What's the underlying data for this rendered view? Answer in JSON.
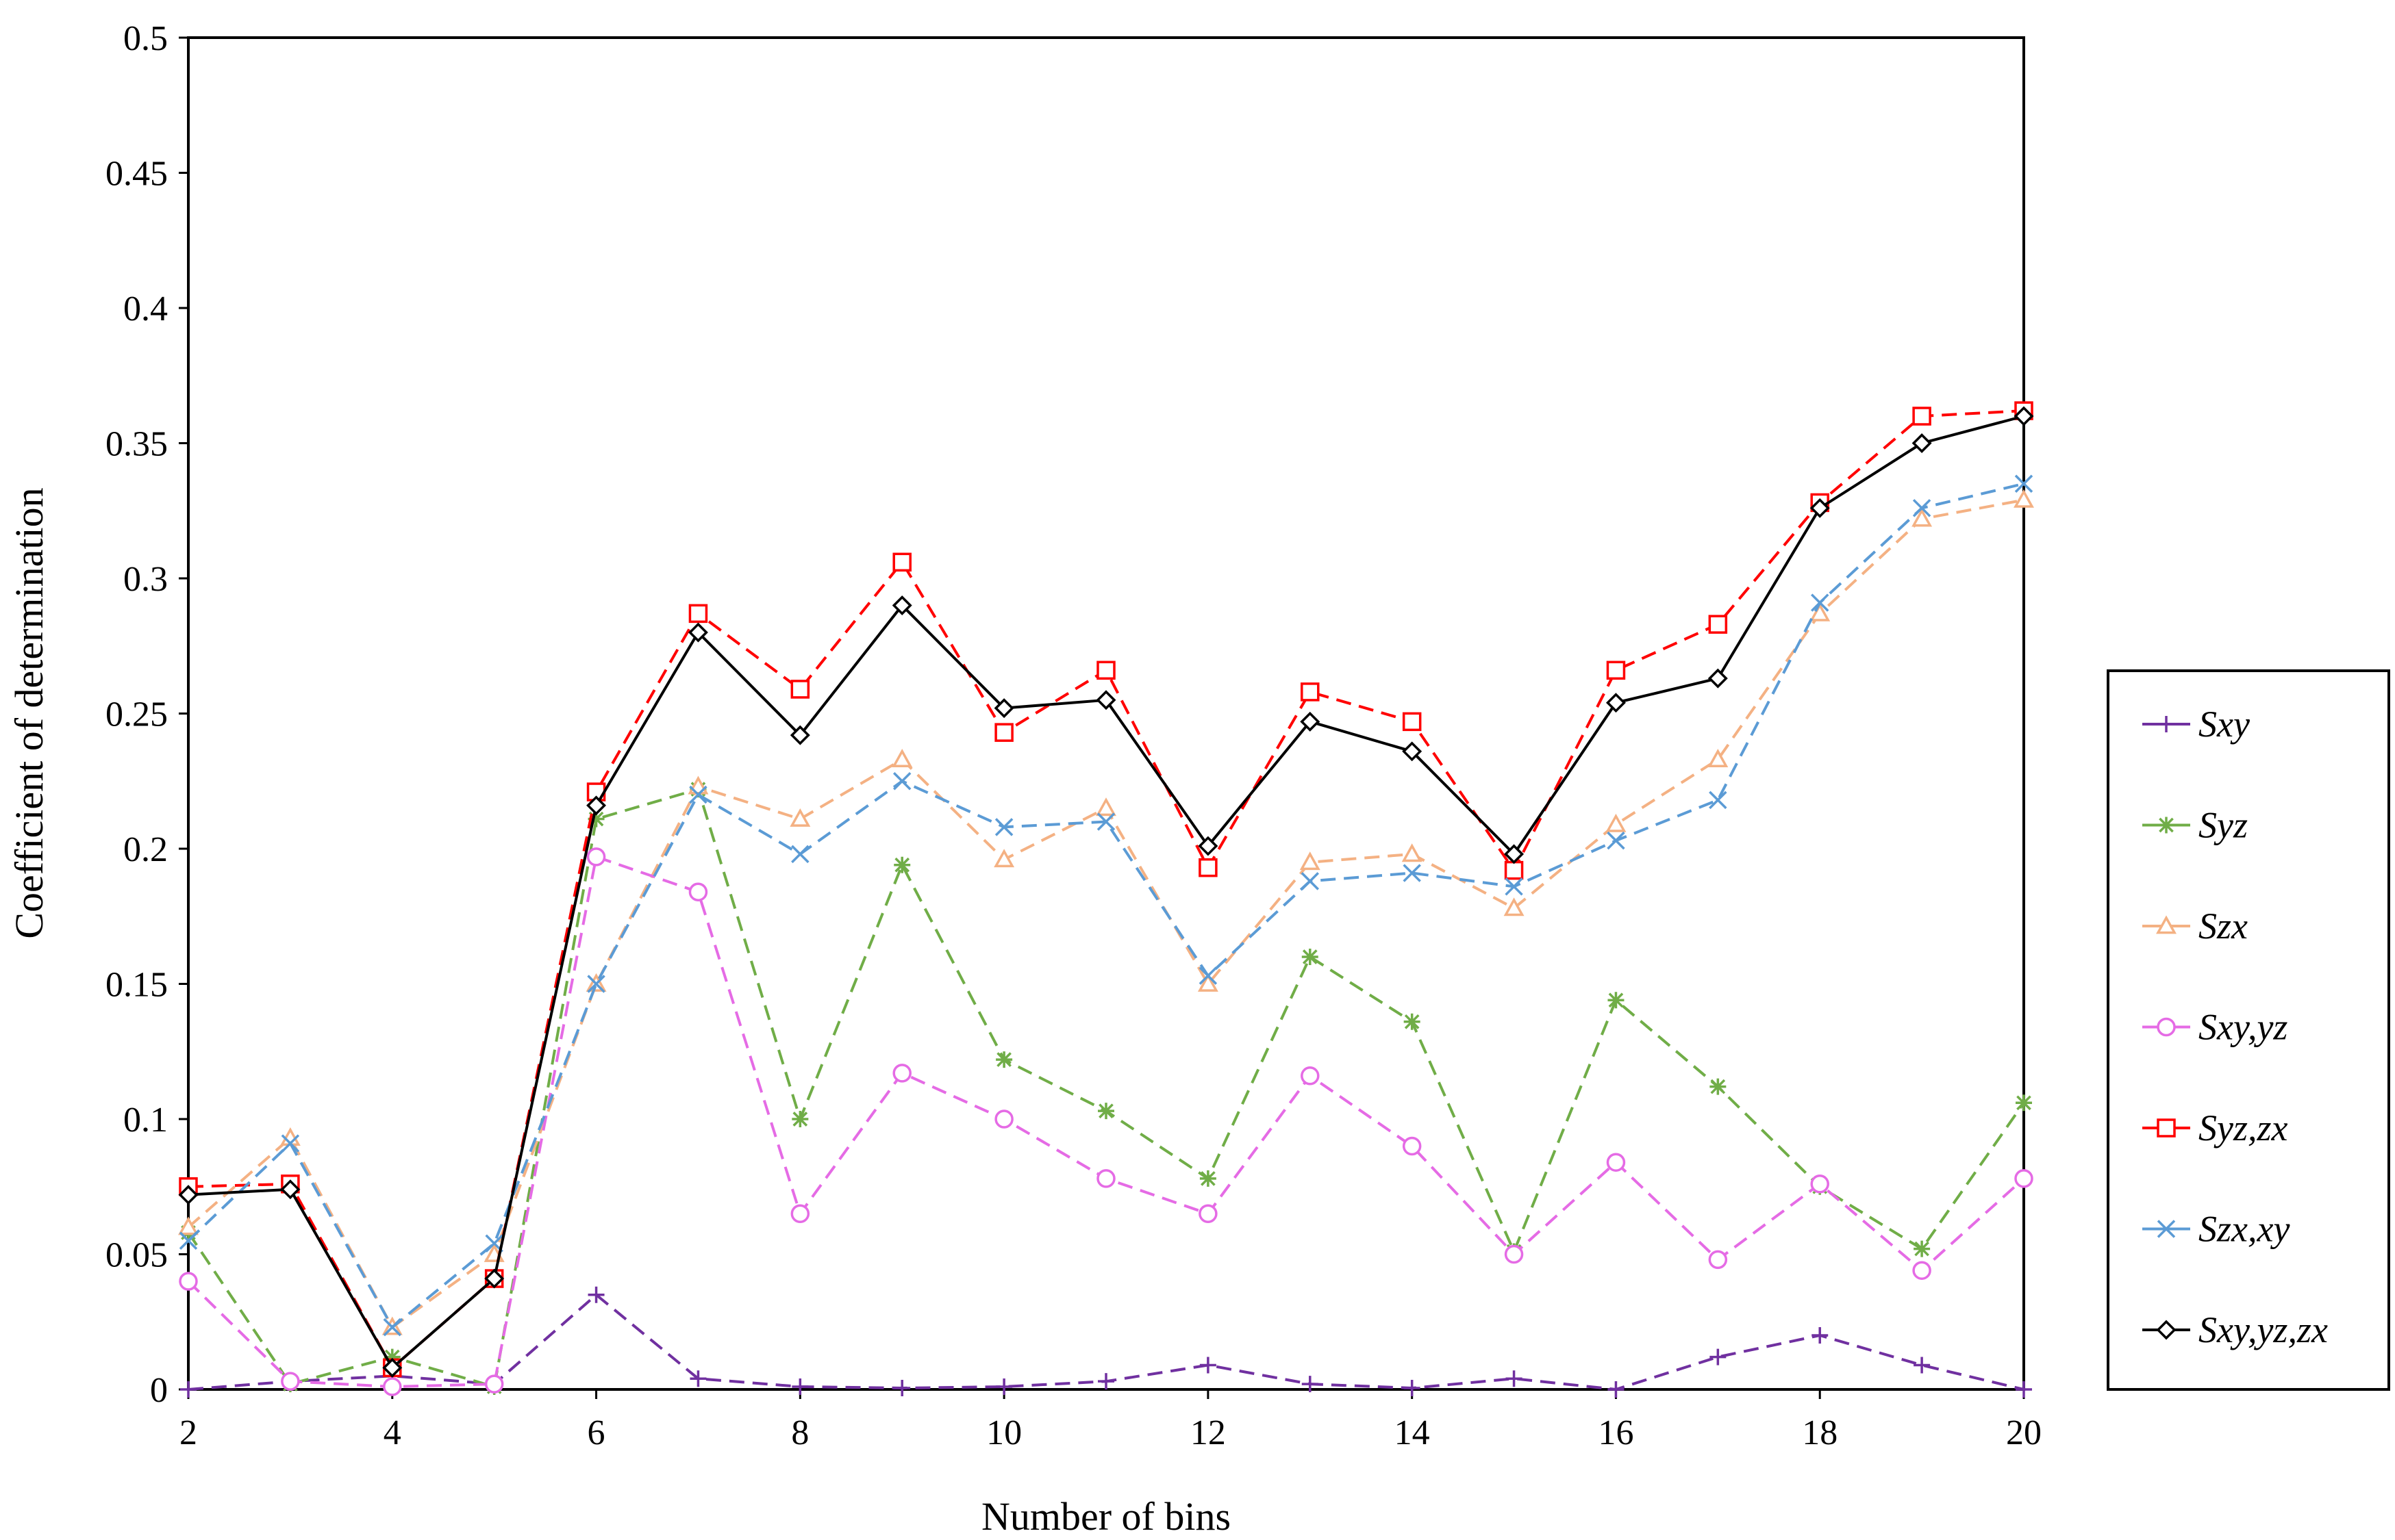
{
  "chart_data": {
    "type": "line",
    "title": "",
    "xlabel": "Number of bins",
    "ylabel": "Coefficient of determination",
    "xlim": [
      2,
      20
    ],
    "ylim": [
      0,
      0.5
    ],
    "xticks": [
      "2",
      "4",
      "6",
      "8",
      "10",
      "12",
      "14",
      "16",
      "18",
      "20"
    ],
    "yticks": [
      "0",
      "0.05",
      "0.1",
      "0.15",
      "0.2",
      "0.25",
      "0.3",
      "0.35",
      "0.4",
      "0.45",
      "0.5"
    ],
    "legend_position": "right",
    "x": [
      2,
      3,
      4,
      5,
      6,
      7,
      8,
      9,
      10,
      11,
      12,
      13,
      14,
      15,
      16,
      17,
      18,
      19,
      20
    ],
    "series": [
      {
        "name": "Sxy",
        "color": "#7030A0",
        "marker": "plus",
        "dash": true,
        "values": [
          0.0,
          0.003,
          0.005,
          0.002,
          0.035,
          0.004,
          0.001,
          0.0005,
          0.001,
          0.003,
          0.009,
          0.002,
          0.0005,
          0.004,
          0.0,
          0.012,
          0.02,
          0.009,
          0.0
        ]
      },
      {
        "name": "Syz",
        "color": "#70AD47",
        "marker": "star",
        "dash": true,
        "values": [
          0.058,
          0.002,
          0.012,
          0.001,
          0.211,
          0.222,
          0.1,
          0.194,
          0.122,
          0.103,
          0.078,
          0.16,
          0.136,
          0.051,
          0.144,
          0.112,
          0.075,
          0.052,
          0.106
        ]
      },
      {
        "name": "Szx",
        "color": "#F4B183",
        "marker": "triangle",
        "dash": true,
        "values": [
          0.06,
          0.093,
          0.023,
          0.05,
          0.15,
          0.223,
          0.211,
          0.233,
          0.196,
          0.215,
          0.15,
          0.195,
          0.198,
          0.178,
          0.209,
          0.233,
          0.287,
          0.322,
          0.329
        ]
      },
      {
        "name": "Sxy,yz",
        "color": "#E56BE5",
        "marker": "circle",
        "dash": true,
        "values": [
          0.04,
          0.003,
          0.001,
          0.002,
          0.197,
          0.184,
          0.065,
          0.117,
          0.1,
          0.078,
          0.065,
          0.116,
          0.09,
          0.05,
          0.084,
          0.048,
          0.076,
          0.044,
          0.078
        ]
      },
      {
        "name": "Syz,zx",
        "color": "#FF0000",
        "marker": "square",
        "dash": true,
        "values": [
          0.075,
          0.076,
          0.008,
          0.041,
          0.221,
          0.287,
          0.259,
          0.306,
          0.243,
          0.266,
          0.193,
          0.258,
          0.247,
          0.192,
          0.266,
          0.283,
          0.328,
          0.36,
          0.362
        ]
      },
      {
        "name": "Szx,xy",
        "color": "#5B9BD5",
        "marker": "x",
        "dash": true,
        "values": [
          0.055,
          0.091,
          0.023,
          0.054,
          0.15,
          0.22,
          0.198,
          0.225,
          0.208,
          0.21,
          0.153,
          0.188,
          0.191,
          0.186,
          0.203,
          0.218,
          0.291,
          0.326,
          0.335
        ]
      },
      {
        "name": "Sxy,yz,zx",
        "color": "#000000",
        "marker": "diamond",
        "dash": false,
        "values": [
          0.072,
          0.074,
          0.008,
          0.041,
          0.216,
          0.28,
          0.242,
          0.29,
          0.252,
          0.255,
          0.201,
          0.247,
          0.236,
          0.198,
          0.254,
          0.263,
          0.326,
          0.35,
          0.36
        ]
      }
    ]
  }
}
